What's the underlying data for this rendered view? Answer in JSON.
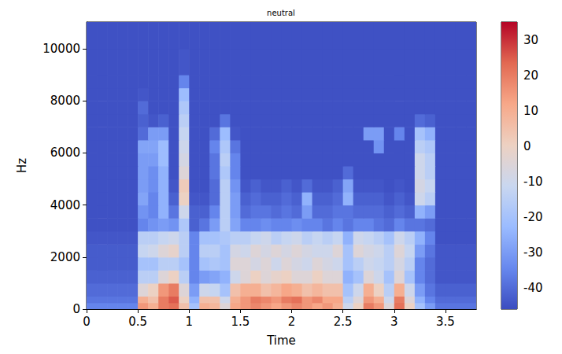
{
  "chart_data": {
    "type": "heatmap",
    "title": "neutral",
    "xlabel": "Time",
    "ylabel": "Hz",
    "x": [
      0,
      0.1,
      0.2,
      0.3,
      0.4,
      0.5,
      0.6,
      0.7,
      0.8,
      0.9,
      1.0,
      1.1,
      1.2,
      1.3,
      1.4,
      1.5,
      1.6,
      1.7,
      1.8,
      1.9,
      2.0,
      2.1,
      2.2,
      2.3,
      2.4,
      2.5,
      2.6,
      2.7,
      2.8,
      2.9,
      3.0,
      3.1,
      3.2,
      3.3,
      3.4,
      3.5,
      3.6,
      3.7
    ],
    "y": [
      0,
      250,
      500,
      1000,
      1500,
      2000,
      2500,
      3000,
      3500,
      4000,
      4500,
      5000,
      5500,
      6000,
      6500,
      7000,
      7500,
      8000,
      8500,
      9000,
      10000
    ],
    "z": [
      [
        -35,
        -35,
        -35,
        -35,
        -35,
        15,
        10,
        20,
        22,
        5,
        -20,
        10,
        8,
        -5,
        12,
        15,
        18,
        15,
        12,
        15,
        18,
        15,
        12,
        15,
        10,
        -10,
        0,
        20,
        15,
        -5,
        22,
        0,
        -20,
        -30,
        -38,
        -38,
        -38,
        -38
      ],
      [
        -38,
        -38,
        -38,
        -38,
        -38,
        10,
        5,
        20,
        25,
        0,
        -25,
        5,
        5,
        -10,
        10,
        15,
        20,
        18,
        15,
        20,
        22,
        15,
        18,
        12,
        12,
        -15,
        -5,
        15,
        10,
        -10,
        20,
        -5,
        -25,
        -35,
        -40,
        -40,
        -40,
        -40
      ],
      [
        -40,
        -40,
        -40,
        -40,
        -40,
        -5,
        0,
        15,
        20,
        -5,
        -30,
        -10,
        -12,
        -20,
        5,
        10,
        10,
        5,
        8,
        12,
        10,
        5,
        8,
        5,
        5,
        -20,
        -10,
        10,
        0,
        -15,
        10,
        -10,
        -30,
        -38,
        -42,
        -42,
        -42,
        -42
      ],
      [
        -42,
        -42,
        -42,
        -42,
        -42,
        -15,
        -15,
        -5,
        0,
        -15,
        -35,
        -30,
        -28,
        -25,
        -10,
        -5,
        0,
        -5,
        -2,
        0,
        -5,
        -5,
        0,
        -5,
        -5,
        -25,
        -20,
        -5,
        -10,
        -20,
        -5,
        -20,
        -35,
        -40,
        -44,
        -44,
        -44,
        -44
      ],
      [
        -43,
        -43,
        -43,
        -43,
        -43,
        -20,
        -20,
        -15,
        -15,
        -20,
        -35,
        -20,
        -18,
        -20,
        -5,
        -5,
        -8,
        -5,
        -10,
        -5,
        -8,
        -10,
        -5,
        -8,
        -10,
        -20,
        -15,
        -10,
        -12,
        -15,
        -8,
        -15,
        -35,
        -40,
        -44,
        -44,
        -44,
        -44
      ],
      [
        -43,
        -43,
        -43,
        -43,
        -43,
        -12,
        -10,
        -5,
        -2,
        -15,
        -35,
        -15,
        -15,
        -20,
        -8,
        -10,
        -5,
        -8,
        -5,
        -8,
        -5,
        -8,
        -10,
        -10,
        -5,
        -20,
        -5,
        -8,
        -10,
        -15,
        -5,
        -12,
        -30,
        -38,
        -44,
        -44,
        -44,
        -44
      ],
      [
        -44,
        -44,
        -44,
        -44,
        -44,
        -15,
        -15,
        -12,
        -10,
        -15,
        -35,
        -20,
        -20,
        -18,
        -15,
        -15,
        -12,
        -10,
        -15,
        -12,
        -10,
        -15,
        -12,
        -15,
        -12,
        -25,
        -10,
        -12,
        -15,
        -20,
        -10,
        -15,
        -25,
        -35,
        -45,
        -45,
        -45,
        -45
      ],
      [
        -45,
        -45,
        -45,
        -45,
        -45,
        -35,
        -32,
        -30,
        -32,
        -18,
        -42,
        -38,
        -30,
        -15,
        -28,
        -35,
        -35,
        -33,
        -35,
        -35,
        -33,
        -35,
        -35,
        -38,
        -35,
        -38,
        -35,
        -35,
        -38,
        -40,
        -35,
        -38,
        -38,
        -40,
        -45,
        -45,
        -45,
        -45
      ],
      [
        -45,
        -45,
        -45,
        -45,
        -45,
        -32,
        -35,
        -25,
        -38,
        -10,
        -42,
        -42,
        -35,
        -15,
        -30,
        -40,
        -38,
        -38,
        -40,
        -38,
        -40,
        -30,
        -40,
        -40,
        -38,
        -38,
        -40,
        -40,
        -40,
        -42,
        -40,
        -42,
        -25,
        -30,
        -45,
        -45,
        -45,
        -45
      ],
      [
        -45,
        -45,
        -45,
        -45,
        -45,
        -28,
        -35,
        -25,
        -42,
        0,
        -44,
        -44,
        -40,
        -15,
        -30,
        -42,
        -40,
        -42,
        -42,
        -40,
        -42,
        -25,
        -42,
        -42,
        -40,
        -25,
        -42,
        -42,
        -42,
        -44,
        -42,
        -44,
        -10,
        -15,
        -45,
        -45,
        -45,
        -45
      ],
      [
        -45,
        -45,
        -45,
        -45,
        -45,
        -30,
        -33,
        -25,
        -44,
        2,
        -45,
        -45,
        -40,
        -15,
        -32,
        -44,
        -42,
        -44,
        -44,
        -42,
        -44,
        -40,
        -44,
        -44,
        -42,
        -28,
        -44,
        -44,
        -44,
        -45,
        -44,
        -45,
        -8,
        -12,
        -45,
        -45,
        -45,
        -45
      ],
      [
        -45,
        -45,
        -45,
        -45,
        -45,
        -30,
        -33,
        -25,
        -45,
        -5,
        -45,
        -45,
        -38,
        -18,
        -35,
        -45,
        -45,
        -45,
        -45,
        -45,
        -45,
        -45,
        -45,
        -45,
        -45,
        -40,
        -45,
        -45,
        -45,
        -45,
        -45,
        -45,
        -10,
        -15,
        -45,
        -45,
        -45,
        -45
      ],
      [
        -45,
        -45,
        -45,
        -45,
        -45,
        -30,
        -30,
        -22,
        -45,
        -8,
        -45,
        -45,
        -38,
        -15,
        -35,
        -45,
        -45,
        -45,
        -45,
        -45,
        -45,
        -45,
        -45,
        -45,
        -45,
        -45,
        -45,
        -45,
        -45,
        -45,
        -45,
        -45,
        -10,
        -15,
        -45,
        -45,
        -45,
        -45
      ],
      [
        -45,
        -45,
        -45,
        -45,
        -45,
        -28,
        -28,
        -22,
        -45,
        -10,
        -45,
        -45,
        -35,
        -18,
        -38,
        -45,
        -45,
        -45,
        -45,
        -45,
        -45,
        -45,
        -45,
        -45,
        -45,
        -45,
        -45,
        -45,
        -32,
        -45,
        -45,
        -45,
        -15,
        -18,
        -45,
        -45,
        -45,
        -45
      ],
      [
        -45,
        -45,
        -45,
        -45,
        -45,
        -40,
        -30,
        -30,
        -45,
        -12,
        -45,
        -45,
        -40,
        -22,
        -44,
        -45,
        -45,
        -45,
        -45,
        -45,
        -45,
        -45,
        -45,
        -45,
        -45,
        -45,
        -45,
        -30,
        -30,
        -45,
        -35,
        -45,
        -20,
        -25,
        -45,
        -45,
        -45,
        -45
      ],
      [
        -45,
        -45,
        -45,
        -45,
        -45,
        -42,
        -44,
        -42,
        -45,
        -15,
        -45,
        -45,
        -45,
        -38,
        -45,
        -45,
        -45,
        -45,
        -45,
        -45,
        -45,
        -45,
        -45,
        -45,
        -45,
        -45,
        -45,
        -45,
        -45,
        -45,
        -45,
        -45,
        -40,
        -42,
        -45,
        -45,
        -45,
        -45
      ],
      [
        -45,
        -45,
        -45,
        -45,
        -45,
        -40,
        -45,
        -45,
        -45,
        -18,
        -45,
        -45,
        -45,
        -45,
        -45,
        -45,
        -45,
        -45,
        -45,
        -45,
        -45,
        -45,
        -45,
        -45,
        -45,
        -45,
        -45,
        -45,
        -45,
        -45,
        -45,
        -45,
        -45,
        -45,
        -45,
        -45,
        -45,
        -45
      ],
      [
        -45,
        -45,
        -45,
        -45,
        -45,
        -44,
        -45,
        -45,
        -45,
        -22,
        -45,
        -45,
        -45,
        -45,
        -45,
        -45,
        -45,
        -45,
        -45,
        -45,
        -45,
        -45,
        -45,
        -45,
        -45,
        -45,
        -45,
        -45,
        -45,
        -45,
        -45,
        -45,
        -45,
        -45,
        -45,
        -45,
        -45,
        -45
      ],
      [
        -45,
        -45,
        -45,
        -45,
        -45,
        -45,
        -45,
        -45,
        -45,
        -35,
        -45,
        -45,
        -45,
        -45,
        -45,
        -45,
        -45,
        -45,
        -45,
        -45,
        -45,
        -45,
        -45,
        -45,
        -45,
        -45,
        -45,
        -45,
        -45,
        -45,
        -45,
        -45,
        -45,
        -45,
        -45,
        -45,
        -45,
        -45
      ],
      [
        -45,
        -45,
        -45,
        -45,
        -45,
        -45,
        -45,
        -45,
        -45,
        -44,
        -45,
        -45,
        -45,
        -45,
        -45,
        -45,
        -45,
        -45,
        -45,
        -45,
        -45,
        -45,
        -45,
        -45,
        -45,
        -45,
        -45,
        -45,
        -45,
        -45,
        -45,
        -45,
        -45,
        -45,
        -45,
        -45,
        -45,
        -45
      ],
      [
        -45,
        -45,
        -45,
        -45,
        -45,
        -45,
        -45,
        -45,
        -45,
        -45,
        -45,
        -45,
        -45,
        -45,
        -45,
        -45,
        -45,
        -45,
        -45,
        -45,
        -45,
        -45,
        -45,
        -45,
        -45,
        -45,
        -45,
        -45,
        -45,
        -45,
        -45,
        -45,
        -45,
        -45,
        -45,
        -45,
        -45,
        -45
      ]
    ],
    "xlim": [
      0,
      3.8
    ],
    "xticks": [
      0,
      0.5,
      1,
      1.5,
      2,
      2.5,
      3,
      3.5
    ],
    "ylim": [
      0,
      11025
    ],
    "yticks": [
      0,
      2000,
      4000,
      6000,
      8000,
      10000
    ],
    "colorbar": {
      "range": [
        -46,
        35
      ],
      "ticks": [
        -40,
        -30,
        -20,
        -10,
        0,
        10,
        20,
        30
      ]
    },
    "grid": false
  }
}
